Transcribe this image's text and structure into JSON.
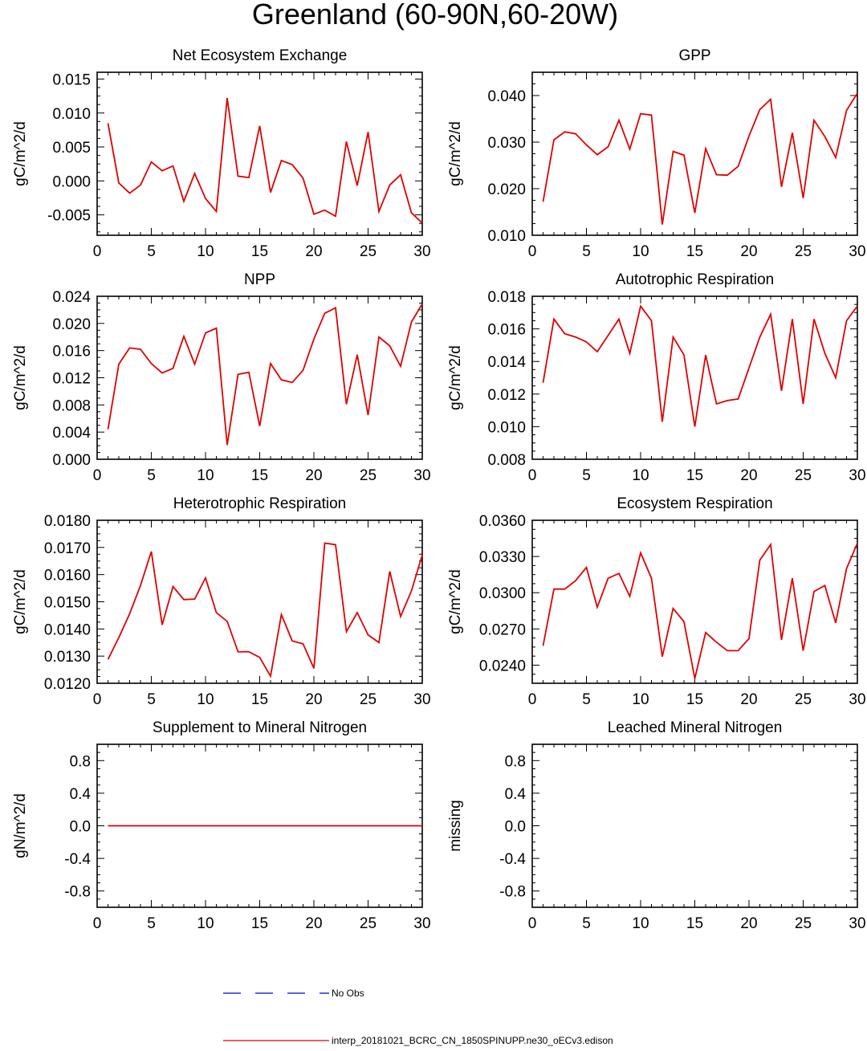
{
  "figure_title": "Greenland (60-90N,60-20W)",
  "legend": [
    {
      "label": "No Obs",
      "color": "#0000cc",
      "style": "dashed"
    },
    {
      "label": "interp_20181021_BCRC_CN_1850SPINUPP.ne30_oECv3.edison",
      "color": "#e00000",
      "style": "solid"
    }
  ],
  "chart_data": [
    {
      "type": "line",
      "title": "Net Ecosystem Exchange",
      "ylabel": "gC/m^2/d",
      "xlim": [
        0,
        30
      ],
      "ylim": [
        -0.008,
        0.016
      ],
      "xticks": [
        0,
        5,
        10,
        15,
        20,
        25,
        30
      ],
      "yticks": [
        -0.005,
        0.0,
        0.005,
        0.01,
        0.015
      ],
      "ytick_labels": [
        "-0.005",
        "0.000",
        "0.005",
        "0.010",
        "0.015"
      ],
      "series": [
        {
          "name": "model",
          "color": "#e00000",
          "x": [
            1,
            2,
            3,
            4,
            5,
            6,
            7,
            8,
            9,
            10,
            11,
            12,
            13,
            14,
            15,
            16,
            17,
            18,
            19,
            20,
            21,
            22,
            23,
            24,
            25,
            26,
            27,
            28,
            29,
            30
          ],
          "values": [
            0.0085,
            -0.0003,
            -0.0018,
            -0.0006,
            0.0028,
            0.0015,
            0.0022,
            -0.003,
            0.0011,
            -0.0026,
            -0.0045,
            0.0122,
            0.0007,
            0.0005,
            0.0081,
            -0.0017,
            0.003,
            0.0024,
            0.0004,
            -0.0049,
            -0.0043,
            -0.0052,
            0.0058,
            -0.0007,
            0.0072,
            -0.0045,
            -0.0006,
            0.0009,
            -0.0047,
            -0.0062
          ]
        }
      ]
    },
    {
      "type": "line",
      "title": "GPP",
      "ylabel": "gC/m^2/d",
      "xlim": [
        0,
        30
      ],
      "ylim": [
        0.01,
        0.045
      ],
      "xticks": [
        0,
        5,
        10,
        15,
        20,
        25,
        30
      ],
      "yticks": [
        0.01,
        0.02,
        0.03,
        0.04
      ],
      "ytick_labels": [
        "0.010",
        "0.020",
        "0.030",
        "0.040"
      ],
      "series": [
        {
          "name": "model",
          "color": "#e00000",
          "x": [
            1,
            2,
            3,
            4,
            5,
            6,
            7,
            8,
            9,
            10,
            11,
            12,
            13,
            14,
            15,
            16,
            17,
            18,
            19,
            20,
            21,
            22,
            23,
            24,
            25,
            26,
            27,
            28,
            29,
            30
          ],
          "values": [
            0.0172,
            0.0305,
            0.0322,
            0.0318,
            0.0294,
            0.0273,
            0.029,
            0.0347,
            0.0285,
            0.0361,
            0.0358,
            0.0123,
            0.028,
            0.0272,
            0.0148,
            0.0286,
            0.023,
            0.0229,
            0.0248,
            0.0313,
            0.037,
            0.0392,
            0.0204,
            0.032,
            0.018,
            0.0347,
            0.0312,
            0.0267,
            0.0368,
            0.0405
          ]
        }
      ]
    },
    {
      "type": "line",
      "title": "NPP",
      "ylabel": "gC/m^2/d",
      "xlim": [
        0,
        30
      ],
      "ylim": [
        0.0,
        0.024
      ],
      "xticks": [
        0,
        5,
        10,
        15,
        20,
        25,
        30
      ],
      "yticks": [
        0.0,
        0.004,
        0.008,
        0.012,
        0.016,
        0.02,
        0.024
      ],
      "ytick_labels": [
        "0.000",
        "0.004",
        "0.008",
        "0.012",
        "0.016",
        "0.020",
        "0.024"
      ],
      "series": [
        {
          "name": "model",
          "color": "#e00000",
          "x": [
            1,
            2,
            3,
            4,
            5,
            6,
            7,
            8,
            9,
            10,
            11,
            12,
            13,
            14,
            15,
            16,
            17,
            18,
            19,
            20,
            21,
            22,
            23,
            24,
            25,
            26,
            27,
            28,
            29,
            30
          ],
          "values": [
            0.0044,
            0.014,
            0.0164,
            0.0162,
            0.0141,
            0.0127,
            0.0134,
            0.0181,
            0.014,
            0.0186,
            0.0193,
            0.0021,
            0.0125,
            0.0128,
            0.0049,
            0.0141,
            0.0117,
            0.0113,
            0.0131,
            0.0177,
            0.0215,
            0.0223,
            0.0081,
            0.0154,
            0.0065,
            0.018,
            0.0167,
            0.0137,
            0.0202,
            0.0229
          ]
        }
      ]
    },
    {
      "type": "line",
      "title": "Autotrophic Respiration",
      "ylabel": "gC/m^2/d",
      "xlim": [
        0,
        30
      ],
      "ylim": [
        0.008,
        0.018
      ],
      "xticks": [
        0,
        5,
        10,
        15,
        20,
        25,
        30
      ],
      "yticks": [
        0.008,
        0.01,
        0.012,
        0.014,
        0.016,
        0.018
      ],
      "ytick_labels": [
        "0.008",
        "0.010",
        "0.012",
        "0.014",
        "0.016",
        "0.018"
      ],
      "series": [
        {
          "name": "model",
          "color": "#e00000",
          "x": [
            1,
            2,
            3,
            4,
            5,
            6,
            7,
            8,
            9,
            10,
            11,
            12,
            13,
            14,
            15,
            16,
            17,
            18,
            19,
            20,
            21,
            22,
            23,
            24,
            25,
            26,
            27,
            28,
            29,
            30
          ],
          "values": [
            0.0127,
            0.0166,
            0.0157,
            0.0155,
            0.0152,
            0.0146,
            0.0156,
            0.0166,
            0.0145,
            0.0174,
            0.0165,
            0.0103,
            0.0155,
            0.0144,
            0.01,
            0.0144,
            0.0114,
            0.0116,
            0.0117,
            0.0136,
            0.0155,
            0.0169,
            0.0122,
            0.0166,
            0.0114,
            0.0166,
            0.0145,
            0.013,
            0.0165,
            0.0174
          ]
        }
      ]
    },
    {
      "type": "line",
      "title": "Heterotrophic Respiration",
      "ylabel": "gC/m^2/d",
      "xlim": [
        0,
        30
      ],
      "ylim": [
        0.012,
        0.018
      ],
      "xticks": [
        0,
        5,
        10,
        15,
        20,
        25,
        30
      ],
      "yticks": [
        0.012,
        0.013,
        0.014,
        0.015,
        0.016,
        0.017,
        0.018
      ],
      "ytick_labels": [
        "0.0120",
        "0.0130",
        "0.0140",
        "0.0150",
        "0.0160",
        "0.0170",
        "0.0180"
      ],
      "series": [
        {
          "name": "model",
          "color": "#e00000",
          "x": [
            1,
            2,
            3,
            4,
            5,
            6,
            7,
            8,
            9,
            10,
            11,
            12,
            13,
            14,
            15,
            16,
            17,
            18,
            19,
            20,
            21,
            22,
            23,
            24,
            25,
            26,
            27,
            28,
            29,
            30
          ],
          "values": [
            0.01288,
            0.01368,
            0.01456,
            0.0156,
            0.01685,
            0.01415,
            0.01556,
            0.01508,
            0.0151,
            0.01588,
            0.0146,
            0.01428,
            0.01316,
            0.01316,
            0.01295,
            0.01226,
            0.01453,
            0.01356,
            0.01345,
            0.01255,
            0.01716,
            0.0171,
            0.0139,
            0.0146,
            0.01378,
            0.0135,
            0.01612,
            0.01446,
            0.0154,
            0.01672
          ]
        }
      ]
    },
    {
      "type": "line",
      "title": "Ecosystem Respiration",
      "ylabel": "gC/m^2/d",
      "xlim": [
        0,
        30
      ],
      "ylim": [
        0.0225,
        0.036
      ],
      "xticks": [
        0,
        5,
        10,
        15,
        20,
        25,
        30
      ],
      "yticks": [
        0.024,
        0.027,
        0.03,
        0.033,
        0.036
      ],
      "ytick_labels": [
        "0.0240",
        "0.0270",
        "0.0300",
        "0.0330",
        "0.0360"
      ],
      "series": [
        {
          "name": "model",
          "color": "#e00000",
          "x": [
            1,
            2,
            3,
            4,
            5,
            6,
            7,
            8,
            9,
            10,
            11,
            12,
            13,
            14,
            15,
            16,
            17,
            18,
            19,
            20,
            21,
            22,
            23,
            24,
            25,
            26,
            27,
            28,
            29,
            30
          ],
          "values": [
            0.0256,
            0.0303,
            0.0303,
            0.031,
            0.0321,
            0.0288,
            0.0312,
            0.0316,
            0.0297,
            0.0333,
            0.0312,
            0.0247,
            0.0287,
            0.0276,
            0.0229,
            0.0267,
            0.0259,
            0.0252,
            0.0252,
            0.0262,
            0.0327,
            0.034,
            0.0261,
            0.0312,
            0.0252,
            0.0301,
            0.0306,
            0.0275,
            0.032,
            0.0341
          ]
        }
      ]
    },
    {
      "type": "line",
      "title": "Supplement to Mineral Nitrogen",
      "ylabel": "gN/m^2/d",
      "xlim": [
        0,
        30
      ],
      "ylim": [
        -1.0,
        1.0
      ],
      "xticks": [
        0,
        5,
        10,
        15,
        20,
        25,
        30
      ],
      "yticks": [
        -0.8,
        -0.4,
        0.0,
        0.4,
        0.8
      ],
      "ytick_labels": [
        "-0.8",
        "-0.4",
        "0.0",
        "0.4",
        "0.8"
      ],
      "series": [
        {
          "name": "model",
          "color": "#e00000",
          "x": [
            1,
            2,
            3,
            4,
            5,
            6,
            7,
            8,
            9,
            10,
            11,
            12,
            13,
            14,
            15,
            16,
            17,
            18,
            19,
            20,
            21,
            22,
            23,
            24,
            25,
            26,
            27,
            28,
            29,
            30
          ],
          "values": [
            0,
            0,
            0,
            0,
            0,
            0,
            0,
            0,
            0,
            0,
            0,
            0,
            0,
            0,
            0,
            0,
            0,
            0,
            0,
            0,
            0,
            0,
            0,
            0,
            0,
            0,
            0,
            0,
            0,
            0
          ]
        }
      ]
    },
    {
      "type": "line",
      "title": "Leached Mineral Nitrogen",
      "ylabel": "missing",
      "xlim": [
        0,
        30
      ],
      "ylim": [
        -1.0,
        1.0
      ],
      "xticks": [
        0,
        5,
        10,
        15,
        20,
        25,
        30
      ],
      "yticks": [
        -0.8,
        -0.4,
        0.0,
        0.4,
        0.8
      ],
      "ytick_labels": [
        "-0.8",
        "-0.4",
        "0.0",
        "0.4",
        "0.8"
      ],
      "series": []
    }
  ]
}
